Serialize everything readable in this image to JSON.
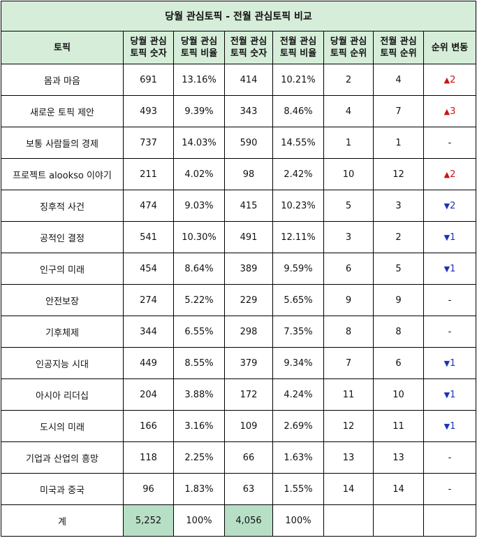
{
  "title": "당월 관심토픽 - 전월 관심토픽 비교",
  "headers": {
    "topic": "토픽",
    "cur_count": [
      "당월 관심",
      "토픽 숫자"
    ],
    "cur_ratio": [
      "당월 관심",
      "토픽 비율"
    ],
    "prev_count": [
      "전월 관심",
      "토픽 숫자"
    ],
    "prev_ratio": [
      "전월 관심",
      "토픽 비율"
    ],
    "cur_rank": [
      "당월 관심",
      "토픽 순위"
    ],
    "prev_rank": [
      "전월 관심",
      "토픽 순위"
    ],
    "change": "순위 변동"
  },
  "rows": [
    {
      "topic": "몸과 마음",
      "cur_count": "691",
      "cur_ratio": "13.16%",
      "prev_count": "414",
      "prev_ratio": "10.21%",
      "cur_rank": "2",
      "prev_rank": "4",
      "change_dir": "up",
      "change_arrow": "▲",
      "change_value": "2"
    },
    {
      "topic": "새로운 토픽 제안",
      "cur_count": "493",
      "cur_ratio": "9.39%",
      "prev_count": "343",
      "prev_ratio": "8.46%",
      "cur_rank": "4",
      "prev_rank": "7",
      "change_dir": "up",
      "change_arrow": "▲",
      "change_value": "3"
    },
    {
      "topic": "보통 사람들의 경제",
      "cur_count": "737",
      "cur_ratio": "14.03%",
      "prev_count": "590",
      "prev_ratio": "14.55%",
      "cur_rank": "1",
      "prev_rank": "1",
      "change_dir": "none",
      "change_arrow": "",
      "change_value": "-"
    },
    {
      "topic": "프로젝트 alookso 이야기",
      "cur_count": "211",
      "cur_ratio": "4.02%",
      "prev_count": "98",
      "prev_ratio": "2.42%",
      "cur_rank": "10",
      "prev_rank": "12",
      "change_dir": "up",
      "change_arrow": "▲",
      "change_value": "2"
    },
    {
      "topic": "징후적 사건",
      "cur_count": "474",
      "cur_ratio": "9.03%",
      "prev_count": "415",
      "prev_ratio": "10.23%",
      "cur_rank": "5",
      "prev_rank": "3",
      "change_dir": "down",
      "change_arrow": "▼",
      "change_value": "2"
    },
    {
      "topic": "공적인 결정",
      "cur_count": "541",
      "cur_ratio": "10.30%",
      "prev_count": "491",
      "prev_ratio": "12.11%",
      "cur_rank": "3",
      "prev_rank": "2",
      "change_dir": "down",
      "change_arrow": "▼",
      "change_value": "1"
    },
    {
      "topic": "인구의 미래",
      "cur_count": "454",
      "cur_ratio": "8.64%",
      "prev_count": "389",
      "prev_ratio": "9.59%",
      "cur_rank": "6",
      "prev_rank": "5",
      "change_dir": "down",
      "change_arrow": "▼",
      "change_value": "1"
    },
    {
      "topic": "안전보장",
      "cur_count": "274",
      "cur_ratio": "5.22%",
      "prev_count": "229",
      "prev_ratio": "5.65%",
      "cur_rank": "9",
      "prev_rank": "9",
      "change_dir": "none",
      "change_arrow": "",
      "change_value": "-"
    },
    {
      "topic": "기후체제",
      "cur_count": "344",
      "cur_ratio": "6.55%",
      "prev_count": "298",
      "prev_ratio": "7.35%",
      "cur_rank": "8",
      "prev_rank": "8",
      "change_dir": "none",
      "change_arrow": "",
      "change_value": "-"
    },
    {
      "topic": "인공지능 시대",
      "cur_count": "449",
      "cur_ratio": "8.55%",
      "prev_count": "379",
      "prev_ratio": "9.34%",
      "cur_rank": "7",
      "prev_rank": "6",
      "change_dir": "down",
      "change_arrow": "▼",
      "change_value": "1"
    },
    {
      "topic": "아시아 리더십",
      "cur_count": "204",
      "cur_ratio": "3.88%",
      "prev_count": "172",
      "prev_ratio": "4.24%",
      "cur_rank": "11",
      "prev_rank": "10",
      "change_dir": "down",
      "change_arrow": "▼",
      "change_value": "1"
    },
    {
      "topic": "도시의 미래",
      "cur_count": "166",
      "cur_ratio": "3.16%",
      "prev_count": "109",
      "prev_ratio": "2.69%",
      "cur_rank": "12",
      "prev_rank": "11",
      "change_dir": "down",
      "change_arrow": "▼",
      "change_value": "1"
    },
    {
      "topic": "기업과 산업의 흥망",
      "cur_count": "118",
      "cur_ratio": "2.25%",
      "prev_count": "66",
      "prev_ratio": "1.63%",
      "cur_rank": "13",
      "prev_rank": "13",
      "change_dir": "none",
      "change_arrow": "",
      "change_value": "-"
    },
    {
      "topic": "미국과 중국",
      "cur_count": "96",
      "cur_ratio": "1.83%",
      "prev_count": "63",
      "prev_ratio": "1.55%",
      "cur_rank": "14",
      "prev_rank": "14",
      "change_dir": "none",
      "change_arrow": "",
      "change_value": "-"
    }
  ],
  "total": {
    "label": "계",
    "cur_count": "5,252",
    "cur_ratio": "100%",
    "prev_count": "4,056",
    "prev_ratio": "100%"
  },
  "colors": {
    "header_bg": "#d6eed9",
    "total_highlight": "#b7dfc6",
    "up": "#cc1111",
    "down": "#1a32b8"
  }
}
